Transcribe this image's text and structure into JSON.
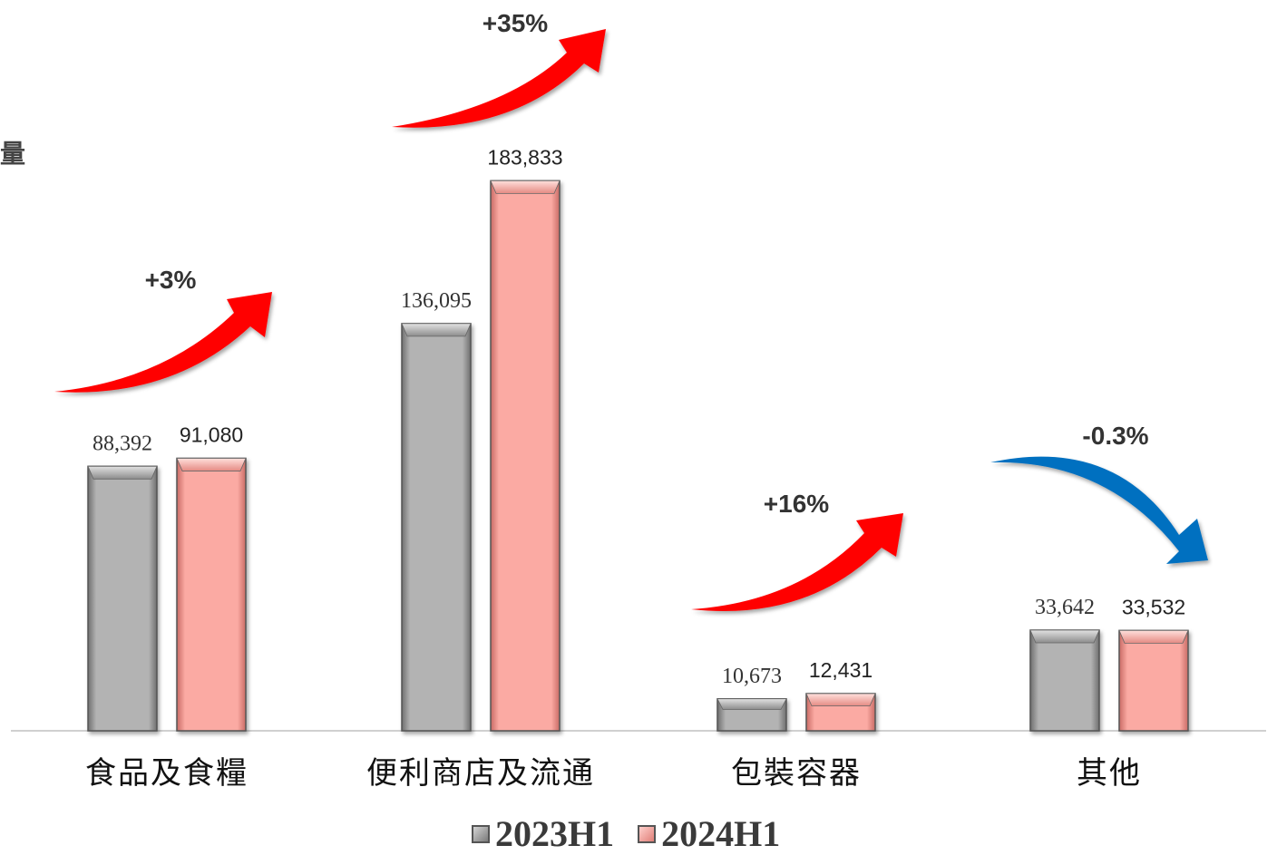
{
  "clipped_axis_text": "量",
  "chart_data": {
    "type": "bar",
    "categories": [
      "食品及食糧",
      "便利商店及流通",
      "包裝容器",
      "其他"
    ],
    "series": [
      {
        "name": "2023H1",
        "values": [
          88392,
          136095,
          10673,
          33642
        ],
        "labels": [
          "88,392",
          "136,095",
          "10,673",
          "33,642"
        ],
        "color": "#a6a6a6"
      },
      {
        "name": "2024H1",
        "values": [
          91080,
          183833,
          12431,
          33532
        ],
        "labels": [
          "91,080",
          "183,833",
          "12,431",
          "33,532"
        ],
        "color": "#f8a7a0"
      }
    ],
    "growth": [
      {
        "label": "+3%",
        "direction": "up",
        "color": "#ff0000"
      },
      {
        "label": "+35%",
        "direction": "up",
        "color": "#ff0000"
      },
      {
        "label": "+16%",
        "direction": "up",
        "color": "#ff0000"
      },
      {
        "label": "-0.3%",
        "direction": "down",
        "color": "#0070c0"
      }
    ],
    "ylim": [
      0,
      200000
    ],
    "grid": false,
    "legend_position": "bottom"
  }
}
